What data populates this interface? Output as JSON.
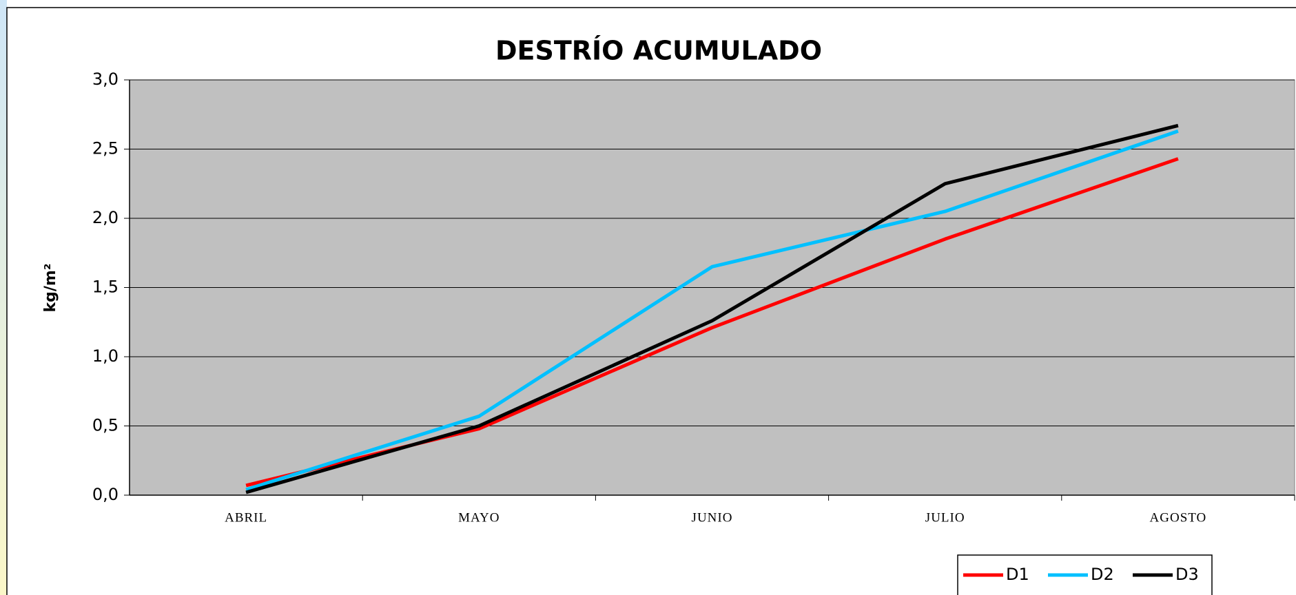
{
  "chart_data": {
    "type": "line",
    "title": "DESTRÍO ACUMULADO",
    "y_label": "kg/m²",
    "categories": [
      "ABRIL",
      "MAYO",
      "JUNIO",
      "JULIO",
      "AGOSTO"
    ],
    "series": [
      {
        "name": "D1",
        "color": "#ff0000",
        "values": [
          0.07,
          0.48,
          1.21,
          1.85,
          2.43
        ]
      },
      {
        "name": "D2",
        "color": "#00c0ff",
        "values": [
          0.04,
          0.57,
          1.65,
          2.05,
          2.63
        ]
      },
      {
        "name": "D3",
        "color": "#000000",
        "values": [
          0.02,
          0.5,
          1.26,
          2.25,
          2.67
        ]
      }
    ],
    "ylim": [
      0,
      3
    ],
    "yticks": [
      {
        "value": 0,
        "label": "0,0"
      },
      {
        "value": 0.5,
        "label": "0,5"
      },
      {
        "value": 1,
        "label": "1,0"
      },
      {
        "value": 1.5,
        "label": "1,5"
      },
      {
        "value": 2,
        "label": "2,0"
      },
      {
        "value": 2.5,
        "label": "2,5"
      },
      {
        "value": 3,
        "label": "3,0"
      }
    ],
    "grid": true,
    "legend": "bottom-right"
  }
}
